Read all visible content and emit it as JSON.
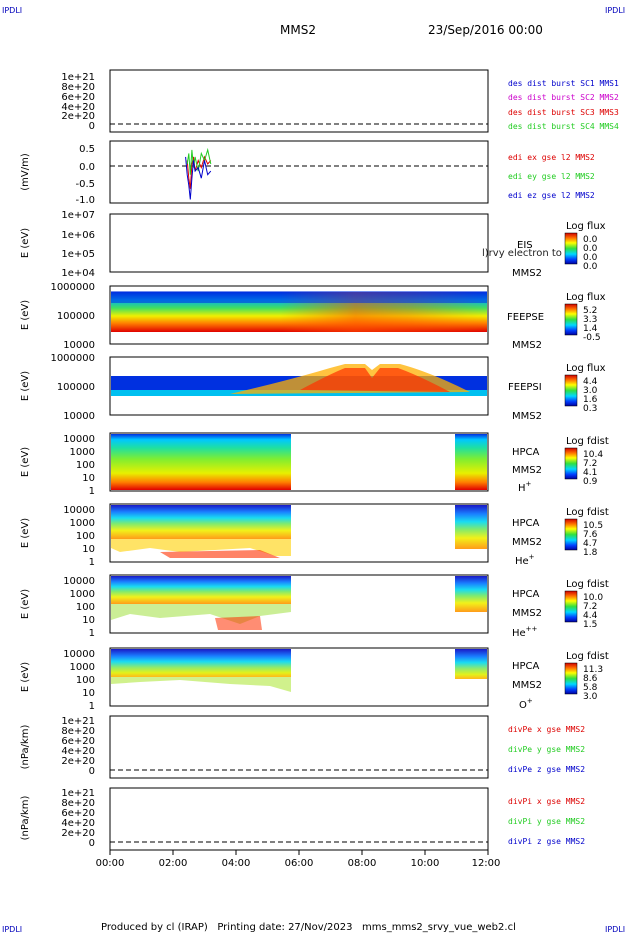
{
  "corner_marks": {
    "tl": "IPDLI",
    "tr": "IPDLI",
    "bl": "IPDLI",
    "br": "IPDLI"
  },
  "header": {
    "spacecraft": "MMS2",
    "date": "23/Sep/2016 00:00"
  },
  "footer": {
    "text": "Produced by cl (IRAP)   Printing date: 27/Nov/2023   mms_mms2_srvy_vue_web2.cl"
  },
  "x_axis": {
    "ticks": [
      "00:00",
      "02:00",
      "04:00",
      "06:00",
      "08:00",
      "10:00",
      "12:00"
    ]
  },
  "colors": {
    "red": "#dd0000",
    "green": "#22cc22",
    "blue": "#0000cc",
    "magenta": "#cc00cc",
    "corner": "#0000bb"
  },
  "chart_data": [
    {
      "type": "line",
      "panel": "des-dist",
      "yticks": [
        "1e+21",
        "8e+20",
        "6e+20",
        "4e+20",
        "2e+20",
        "0"
      ],
      "legend": [
        {
          "label": "des dist burst SC1 MMS1",
          "color": "#0000cc"
        },
        {
          "label": "des dist burst SC2 MMS2",
          "color": "#cc00cc"
        },
        {
          "label": "des dist burst SC3 MMS3",
          "color": "#dd0000"
        },
        {
          "label": "des dist burst SC4 MMS4",
          "color": "#22cc22"
        }
      ]
    },
    {
      "type": "line",
      "panel": "edi",
      "ylabel": "(mV/m)",
      "yticks": [
        "0.5",
        "0.0",
        "-0.5",
        "-1.0"
      ],
      "ylim": [
        -1.0,
        0.75
      ],
      "legend": [
        {
          "label": "edi ex gse l2 MMS2",
          "color": "#dd0000"
        },
        {
          "label": "edi ey gse l2 MMS2",
          "color": "#22cc22"
        },
        {
          "label": "edi ez gse l2 MMS2",
          "color": "#0000cc"
        }
      ],
      "series": [
        {
          "color": "#dd0000",
          "x": [
            2.45,
            2.5,
            2.55,
            2.6,
            2.65,
            2.7,
            2.8,
            2.9,
            3.0,
            3.1,
            3.2
          ],
          "y": [
            0.2,
            -0.3,
            -0.6,
            0.1,
            0.3,
            -0.1,
            0.2,
            0.0,
            0.3,
            0.1,
            0.2
          ]
        },
        {
          "color": "#22cc22",
          "x": [
            2.45,
            2.5,
            2.55,
            2.6,
            2.65,
            2.7,
            2.8,
            2.9,
            3.0,
            3.1,
            3.2
          ],
          "y": [
            0.1,
            0.4,
            -0.2,
            0.5,
            0.0,
            0.3,
            -0.1,
            0.4,
            0.2,
            0.5,
            0.1
          ]
        },
        {
          "color": "#0000cc",
          "x": [
            2.4,
            2.45,
            2.5,
            2.55,
            2.6,
            2.65,
            2.7,
            2.8,
            2.9,
            3.0,
            3.1,
            3.2
          ],
          "y": [
            0.3,
            -0.2,
            -0.5,
            -0.9,
            -0.3,
            0.2,
            -0.1,
            0.0,
            -0.3,
            0.2,
            -0.2,
            -0.1
          ]
        }
      ]
    },
    {
      "type": "heatmap",
      "panel": "eis",
      "ylabel": "E (eV)",
      "yticks": [
        "1e+07",
        "1e+06",
        "1e+05",
        "1e+04"
      ],
      "instrument": [
        "EIS",
        "MMS2"
      ],
      "overlay": "l)rvy electron to",
      "cbar_title": "Log flux",
      "cbar_ticks": [
        "0.0",
        "0.0",
        "0.0",
        "0.0"
      ],
      "coverage": []
    },
    {
      "type": "heatmap",
      "panel": "feepse",
      "ylabel": "E (eV)",
      "yticks": [
        "1000000",
        "100000",
        "10000"
      ],
      "instrument": [
        "FEEPSE",
        "MMS2"
      ],
      "cbar_title": "Log flux",
      "cbar_ticks": [
        "5.2",
        "3.3",
        "1.4",
        "-0.5"
      ],
      "coverage": [
        [
          0,
          12
        ]
      ]
    },
    {
      "type": "heatmap",
      "panel": "feepsi",
      "ylabel": "E (eV)",
      "yticks": [
        "1000000",
        "100000",
        "10000"
      ],
      "instrument": [
        "FEEPSI",
        "MMS2"
      ],
      "cbar_title": "Log flux",
      "cbar_ticks": [
        "4.4",
        "3.0",
        "1.6",
        "0.3"
      ],
      "coverage": [
        [
          0,
          12
        ]
      ]
    },
    {
      "type": "heatmap",
      "panel": "hpca-h",
      "ylabel": "E (eV)",
      "yticks": [
        "10000",
        "1000",
        "100",
        "10",
        "1"
      ],
      "instrument": [
        "HPCA",
        "MMS2"
      ],
      "species": {
        "base": "H",
        "sup": "+"
      },
      "cbar_title": "Log fdist",
      "cbar_ticks": [
        "10.4",
        "7.2",
        "4.1",
        "0.9"
      ],
      "coverage": [
        [
          0,
          5.78
        ],
        [
          10.95,
          12
        ]
      ]
    },
    {
      "type": "heatmap",
      "panel": "hpca-he",
      "ylabel": "E (eV)",
      "yticks": [
        "10000",
        "1000",
        "100",
        "10",
        "1"
      ],
      "instrument": [
        "HPCA",
        "MMS2"
      ],
      "species": {
        "base": "He",
        "sup": "+"
      },
      "cbar_title": "Log fdist",
      "cbar_ticks": [
        "10.5",
        "7.6",
        "4.7",
        "1.8"
      ],
      "coverage": [
        [
          0,
          5.78
        ],
        [
          10.95,
          12
        ]
      ]
    },
    {
      "type": "heatmap",
      "panel": "hpca-hepp",
      "ylabel": "E (eV)",
      "yticks": [
        "10000",
        "1000",
        "100",
        "10",
        "1"
      ],
      "instrument": [
        "HPCA",
        "MMS2"
      ],
      "species": {
        "base": "He",
        "sup": "++"
      },
      "cbar_title": "Log fdist",
      "cbar_ticks": [
        "10.0",
        "7.2",
        "4.4",
        "1.5"
      ],
      "coverage": [
        [
          0,
          5.78
        ],
        [
          10.95,
          12
        ]
      ]
    },
    {
      "type": "heatmap",
      "panel": "hpca-o",
      "ylabel": "E (eV)",
      "yticks": [
        "10000",
        "1000",
        "100",
        "10",
        "1"
      ],
      "instrument": [
        "HPCA",
        "MMS2"
      ],
      "species": {
        "base": "O",
        "sup": "+"
      },
      "cbar_title": "Log fdist",
      "cbar_ticks": [
        "11.3",
        "8.6",
        "5.8",
        "3.0"
      ],
      "coverage": [
        [
          0,
          5.78
        ],
        [
          10.95,
          12
        ]
      ]
    },
    {
      "type": "line",
      "panel": "divpe",
      "ylabel": "(nPa/km)",
      "yticks": [
        "1e+21",
        "8e+20",
        "6e+20",
        "4e+20",
        "2e+20",
        "0"
      ],
      "legend": [
        {
          "label": "divPe x gse MMS2",
          "color": "#dd0000"
        },
        {
          "label": "divPe y gse MMS2",
          "color": "#22cc22"
        },
        {
          "label": "divPe z gse MMS2",
          "color": "#0000cc"
        }
      ]
    },
    {
      "type": "line",
      "panel": "divpi",
      "ylabel": "(nPa/km)",
      "yticks": [
        "1e+21",
        "8e+20",
        "6e+20",
        "4e+20",
        "2e+20",
        "0"
      ],
      "legend": [
        {
          "label": "divPi x gse MMS2",
          "color": "#dd0000"
        },
        {
          "label": "divPi y gse MMS2",
          "color": "#22cc22"
        },
        {
          "label": "divPi z gse MMS2",
          "color": "#0000cc"
        }
      ]
    }
  ]
}
